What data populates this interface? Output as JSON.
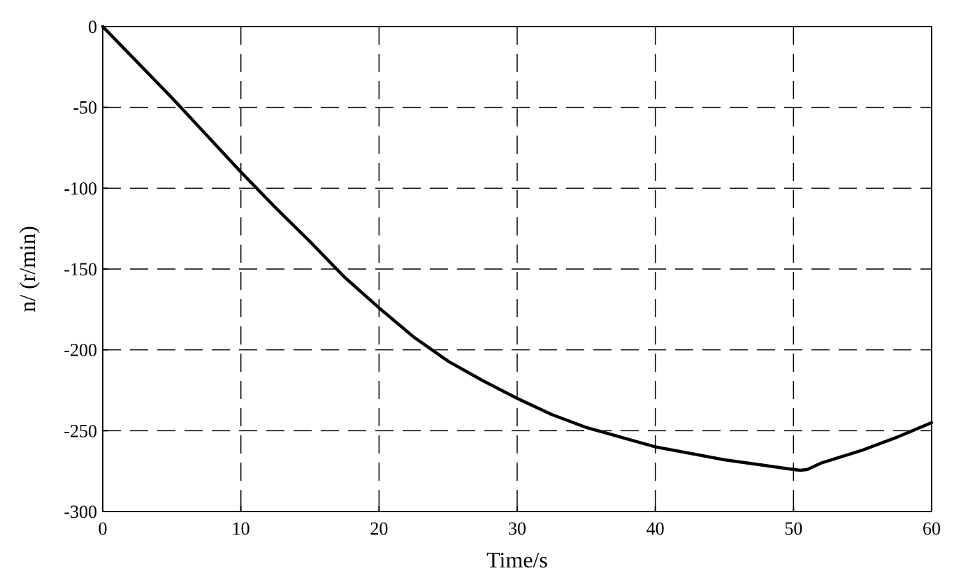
{
  "chart_data": {
    "type": "line",
    "xlabel": "Time/s",
    "ylabel": "n/ (r/min)",
    "xlim": [
      0,
      60
    ],
    "ylim": [
      -300,
      0
    ],
    "xticks": [
      0,
      10,
      20,
      30,
      40,
      50,
      60
    ],
    "yticks": [
      0,
      -50,
      -100,
      -150,
      -200,
      -250,
      -300
    ],
    "xtick_labels": [
      "0",
      "10",
      "20",
      "30",
      "40",
      "50",
      "60"
    ],
    "ytick_labels": [
      "0",
      "-50",
      "-100",
      "-150",
      "-200",
      "-250",
      "-300"
    ],
    "grid": true,
    "series": [
      {
        "color": "#000000",
        "x": [
          0,
          2.5,
          5,
          7.5,
          10,
          12.5,
          15,
          17.5,
          20,
          22.5,
          25,
          27.5,
          30,
          32.5,
          35,
          37.5,
          40,
          42.5,
          45,
          47.5,
          50,
          50.5,
          51,
          52,
          55,
          57.5,
          60
        ],
        "y": [
          0,
          -22,
          -44,
          -67,
          -90,
          -112,
          -133,
          -155,
          -174,
          -192,
          -207,
          -219,
          -230,
          -240,
          -248,
          -254,
          -260,
          -264,
          -268,
          -271,
          -274,
          -274.5,
          -274,
          -270,
          -262,
          -254,
          -245
        ]
      }
    ]
  }
}
